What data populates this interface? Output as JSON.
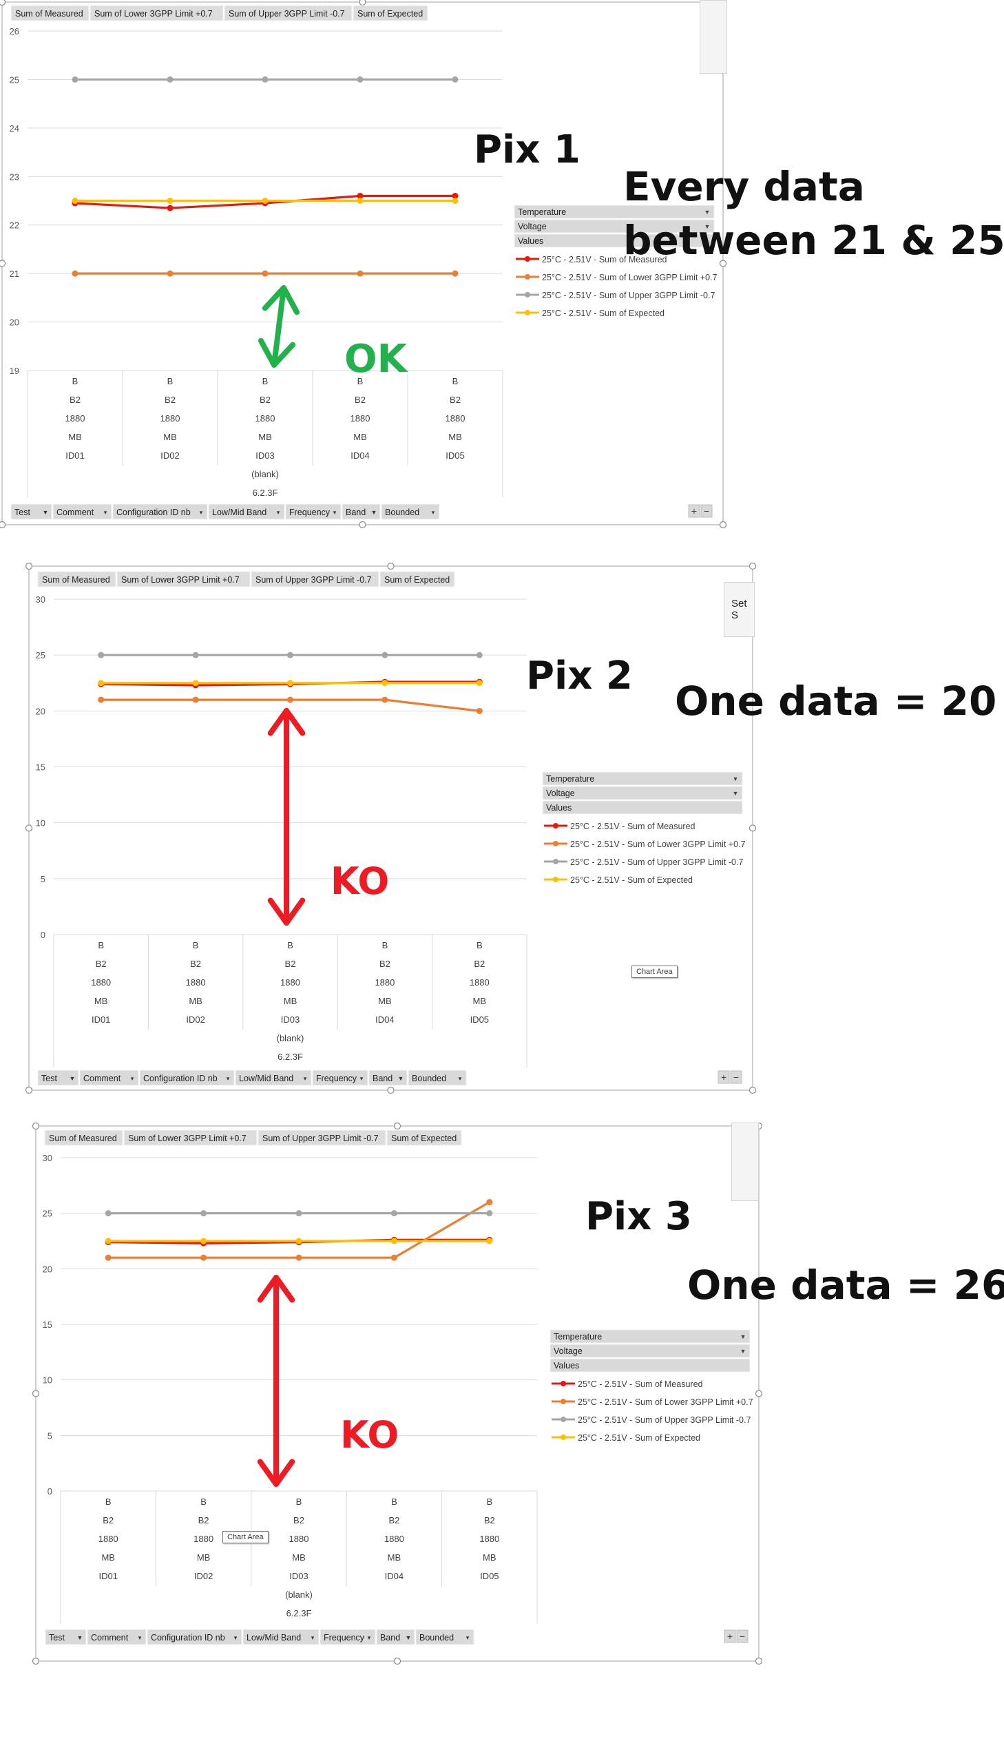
{
  "pix1": {
    "title": "Pix 1",
    "note": "Every data\nbetween 21 & 25",
    "verdict": "OK"
  },
  "pix2": {
    "title": "Pix 2",
    "note": "One data = 20",
    "verdict": "KO"
  },
  "pix3": {
    "title": "Pix 3",
    "note": "One data = 26",
    "verdict": "KO"
  },
  "value_buttons": [
    "Sum of Measured",
    "Sum of Lower 3GPP Limit +0.7",
    "Sum of Upper 3GPP Limit -0.7",
    "Sum of Expected"
  ],
  "axis_buttons": [
    "Test",
    "Comment",
    "Configuration ID nb",
    "Low/Mid Band",
    "Frequency",
    "Band",
    "Bounded"
  ],
  "legend_fields": [
    "Temperature",
    "Voltage",
    "Values"
  ],
  "side_button_label": "Set S",
  "tooltip": "Chart Area",
  "colors": {
    "measured": "#e8180f",
    "lower": "#ed7d31",
    "upper": "#a5a5a5",
    "expected": "#ffc000",
    "ok": "#22b14c",
    "ko": "#ed1c24"
  },
  "chart_data": [
    {
      "type": "line",
      "ylim": [
        19,
        26
      ],
      "yticks": [
        19,
        20,
        21,
        22,
        23,
        24,
        25,
        26
      ],
      "grid": true,
      "legend": "right",
      "categories": [
        [
          "B",
          "B2",
          "1880",
          "MB",
          "ID01"
        ],
        [
          "B",
          "B2",
          "1880",
          "MB",
          "ID02"
        ],
        [
          "B",
          "B2",
          "1880",
          "MB",
          "ID03"
        ],
        [
          "B",
          "B2",
          "1880",
          "MB",
          "ID04"
        ],
        [
          "B",
          "B2",
          "1880",
          "MB",
          "ID05"
        ]
      ],
      "outer_labels": [
        "(blank)",
        "6.2.3F"
      ],
      "series": [
        {
          "name": "25°C - 2.51V - Sum of Measured",
          "values": [
            22.45,
            22.35,
            22.45,
            22.6,
            22.6
          ]
        },
        {
          "name": "25°C - 2.51V - Sum of Lower 3GPP Limit +0.7",
          "values": [
            21,
            21,
            21,
            21,
            21
          ]
        },
        {
          "name": "25°C - 2.51V - Sum of Upper 3GPP Limit -0.7",
          "values": [
            25,
            25,
            25,
            25,
            25
          ]
        },
        {
          "name": "25°C - 2.51V - Sum of Expected",
          "values": [
            22.5,
            22.5,
            22.5,
            22.5,
            22.5
          ]
        }
      ]
    },
    {
      "type": "line",
      "ylim": [
        0,
        30
      ],
      "yticks": [
        0,
        5,
        10,
        15,
        20,
        25,
        30
      ],
      "grid": true,
      "legend": "right",
      "categories": [
        [
          "B",
          "B2",
          "1880",
          "MB",
          "ID01"
        ],
        [
          "B",
          "B2",
          "1880",
          "MB",
          "ID02"
        ],
        [
          "B",
          "B2",
          "1880",
          "MB",
          "ID03"
        ],
        [
          "B",
          "B2",
          "1880",
          "MB",
          "ID04"
        ],
        [
          "B",
          "B2",
          "1880",
          "MB",
          "ID05"
        ]
      ],
      "outer_labels": [
        "(blank)",
        "6.2.3F"
      ],
      "series": [
        {
          "name": "25°C - 2.51V - Sum of Measured",
          "values": [
            22.4,
            22.3,
            22.4,
            22.6,
            22.6
          ]
        },
        {
          "name": "25°C - 2.51V - Sum of Lower 3GPP Limit +0.7",
          "values": [
            21,
            21,
            21,
            21,
            20
          ]
        },
        {
          "name": "25°C - 2.51V - Sum of Upper 3GPP Limit -0.7",
          "values": [
            25,
            25,
            25,
            25,
            25
          ]
        },
        {
          "name": "25°C - 2.51V - Sum of Expected",
          "values": [
            22.5,
            22.5,
            22.5,
            22.5,
            22.5
          ]
        }
      ]
    },
    {
      "type": "line",
      "ylim": [
        0,
        30
      ],
      "yticks": [
        0,
        5,
        10,
        15,
        20,
        25,
        30
      ],
      "grid": true,
      "legend": "right",
      "categories": [
        [
          "B",
          "B2",
          "1880",
          "MB",
          "ID01"
        ],
        [
          "B",
          "B2",
          "1880",
          "MB",
          "ID02"
        ],
        [
          "B",
          "B2",
          "1880",
          "MB",
          "ID03"
        ],
        [
          "B",
          "B2",
          "1880",
          "MB",
          "ID04"
        ],
        [
          "B",
          "B2",
          "1880",
          "MB",
          "ID05"
        ]
      ],
      "outer_labels": [
        "(blank)",
        "6.2.3F"
      ],
      "series": [
        {
          "name": "25°C - 2.51V - Sum of Measured",
          "values": [
            22.4,
            22.3,
            22.4,
            22.6,
            22.6
          ]
        },
        {
          "name": "25°C - 2.51V - Sum of Lower 3GPP Limit +0.7",
          "values": [
            21,
            21,
            21,
            21,
            26
          ]
        },
        {
          "name": "25°C - 2.51V - Sum of Upper 3GPP Limit -0.7",
          "values": [
            25,
            25,
            25,
            25,
            25
          ]
        },
        {
          "name": "25°C - 2.51V - Sum of Expected",
          "values": [
            22.5,
            22.5,
            22.5,
            22.5,
            22.5
          ]
        }
      ]
    }
  ]
}
